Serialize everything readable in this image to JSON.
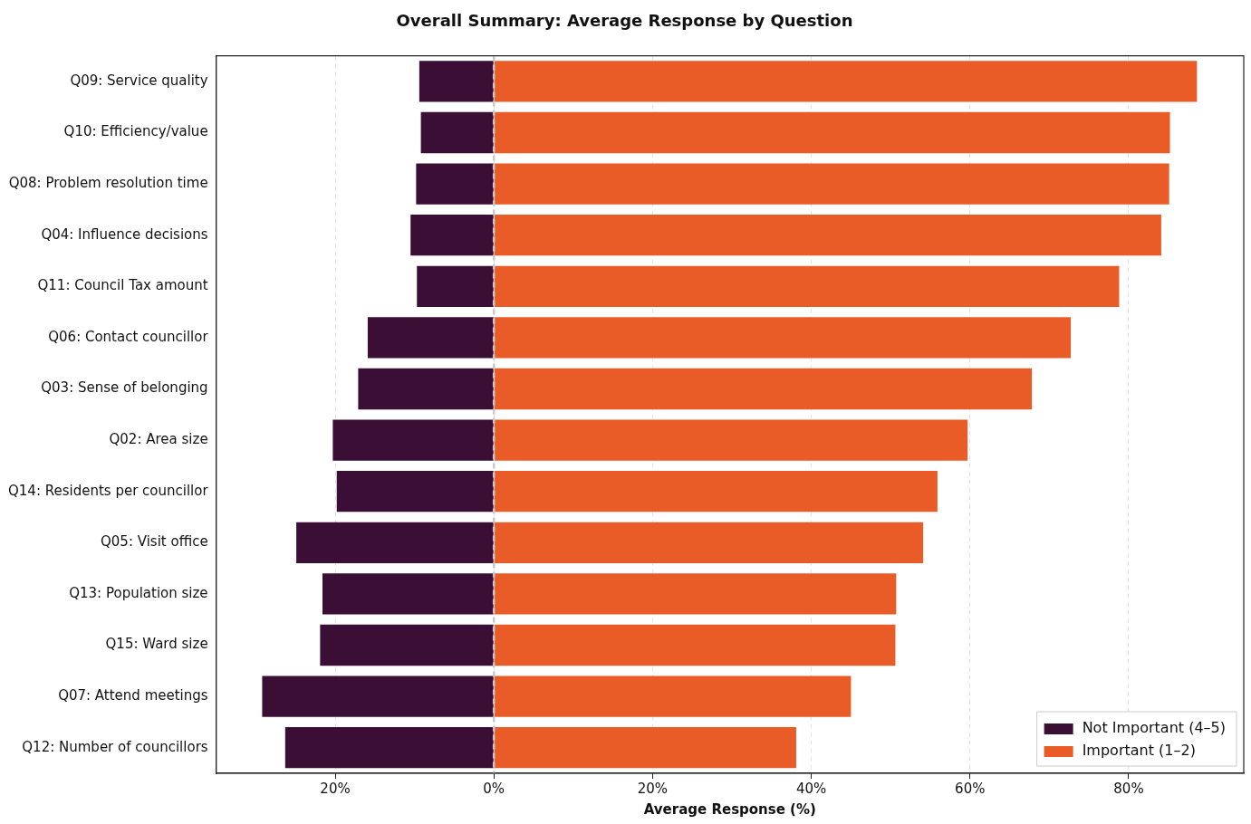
{
  "chart_data": {
    "type": "bar",
    "orientation": "horizontal",
    "stacked": true,
    "title": "Overall Summary: Average Response by Question",
    "xlabel": "Average Response (%)",
    "categories": [
      "Q09: Service quality",
      "Q10: Efficiency/value",
      "Q08: Problem resolution time",
      "Q04: Influence decisions",
      "Q11: Council Tax amount",
      "Q06: Contact councillor",
      "Q03: Sense of belonging",
      "Q02: Area size",
      "Q14: Residents per councillor",
      "Q05: Visit office",
      "Q13: Population size",
      "Q15: Ward size",
      "Q07: Attend meetings",
      "Q12: Number of councillors"
    ],
    "series": [
      {
        "name": "Not Important (4–5)",
        "color": "#3b0f35",
        "values": [
          -9.4,
          -9.2,
          -9.8,
          -10.5,
          -9.7,
          -15.9,
          -17.1,
          -20.3,
          -19.8,
          -24.9,
          -21.6,
          -21.9,
          -29.2,
          -26.3
        ]
      },
      {
        "name": "Important (1–2)",
        "color": "#e95c28",
        "values": [
          88.6,
          85.2,
          85.1,
          84.1,
          78.8,
          72.7,
          67.8,
          59.7,
          55.9,
          54.1,
          50.7,
          50.6,
          45.0,
          38.1
        ]
      }
    ],
    "xlim": [
      -35,
      94.5
    ],
    "xticks": [
      {
        "value": -20,
        "label": "20%"
      },
      {
        "value": 0,
        "label": "0%"
      },
      {
        "value": 20,
        "label": "20%"
      },
      {
        "value": 40,
        "label": "40%"
      },
      {
        "value": 60,
        "label": "60%"
      },
      {
        "value": 80,
        "label": "80%"
      }
    ],
    "ref_lines": [
      {
        "axis": "x",
        "value": 0,
        "color": "#c8c8c8",
        "line_style": "dashed"
      }
    ],
    "grid": "x",
    "legend": "bottom right"
  }
}
